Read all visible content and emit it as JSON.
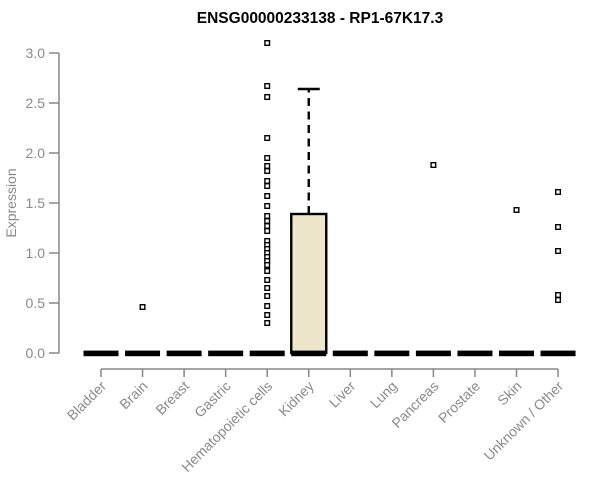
{
  "title": "ENSG00000233138 - RP1-67K17.3",
  "colors": {
    "background": "#ffffff",
    "title_text": "#000000",
    "axis": "#878787",
    "label_text": "#8a8a8a",
    "box_fill": "#ede6cb",
    "box_border": "#000000",
    "outlier_fill": "#ffffff",
    "outlier_border": "#000000"
  },
  "chart_data": {
    "type": "boxplot",
    "title": "ENSG00000233138 - RP1-67K17.3",
    "xlabel": "",
    "ylabel": "Expression",
    "ylim": [
      0.0,
      3.0
    ],
    "ytick_labels": [
      "0.0",
      "0.5",
      "1.0",
      "1.5",
      "2.0",
      "2.5",
      "3.0"
    ],
    "grid": false,
    "legend": false,
    "categories": [
      "Bladder",
      "Brain",
      "Breast",
      "Gastric",
      "Hematopoietic cells",
      "Kidney",
      "Liver",
      "Lung",
      "Pancreas",
      "Prostate",
      "Skin",
      "Unknown / Other"
    ],
    "series": [
      {
        "category": "Bladder",
        "median": 0,
        "q1": 0,
        "q3": 0,
        "whisker_low": 0,
        "whisker_high": 0,
        "outliers": []
      },
      {
        "category": "Brain",
        "median": 0,
        "q1": 0,
        "q3": 0,
        "whisker_low": 0,
        "whisker_high": 0,
        "outliers": [
          0.46
        ]
      },
      {
        "category": "Breast",
        "median": 0,
        "q1": 0,
        "q3": 0,
        "whisker_low": 0,
        "whisker_high": 0,
        "outliers": []
      },
      {
        "category": "Gastric",
        "median": 0,
        "q1": 0,
        "q3": 0,
        "whisker_low": 0,
        "whisker_high": 0,
        "outliers": []
      },
      {
        "category": "Hematopoietic cells",
        "median": 0,
        "q1": 0,
        "q3": 0,
        "whisker_low": 0,
        "whisker_high": 0,
        "outliers": [
          3.1,
          2.67,
          2.56,
          2.15,
          1.95,
          1.87,
          1.82,
          1.72,
          1.67,
          1.57,
          1.47,
          1.37,
          1.32,
          1.27,
          1.22,
          1.12,
          1.08,
          1.04,
          1.0,
          0.96,
          0.92,
          0.88,
          0.82,
          0.73,
          0.65,
          0.57,
          0.47,
          0.38,
          0.3
        ]
      },
      {
        "category": "Kidney",
        "median": 0,
        "q1": 0,
        "q3": 1.39,
        "whisker_low": 0,
        "whisker_high": 2.64,
        "outliers": []
      },
      {
        "category": "Liver",
        "median": 0,
        "q1": 0,
        "q3": 0,
        "whisker_low": 0,
        "whisker_high": 0,
        "outliers": []
      },
      {
        "category": "Lung",
        "median": 0,
        "q1": 0,
        "q3": 0,
        "whisker_low": 0,
        "whisker_high": 0,
        "outliers": []
      },
      {
        "category": "Pancreas",
        "median": 0,
        "q1": 0,
        "q3": 0,
        "whisker_low": 0,
        "whisker_high": 0,
        "outliers": [
          1.88
        ]
      },
      {
        "category": "Prostate",
        "median": 0,
        "q1": 0,
        "q3": 0,
        "whisker_low": 0,
        "whisker_high": 0,
        "outliers": []
      },
      {
        "category": "Skin",
        "median": 0,
        "q1": 0,
        "q3": 0,
        "whisker_low": 0,
        "whisker_high": 0,
        "outliers": [
          1.43
        ]
      },
      {
        "category": "Unknown / Other",
        "median": 0,
        "q1": 0,
        "q3": 0,
        "whisker_low": 0,
        "whisker_high": 0,
        "outliers": [
          1.61,
          1.26,
          1.02,
          0.58,
          0.53
        ]
      }
    ]
  }
}
